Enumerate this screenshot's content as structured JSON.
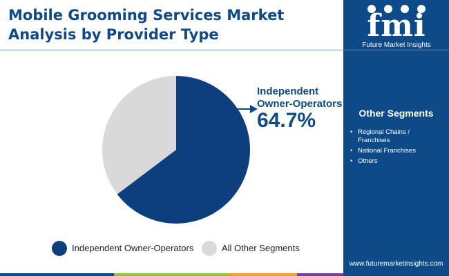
{
  "header": {
    "title": "Mobile Grooming Services Market Analysis by Provider Type"
  },
  "brand": {
    "logo_text": "fmi",
    "name": "Future Market Insights",
    "website": "www.futuremarketinsights.com"
  },
  "sidebar": {
    "segments_title": "Other Segments",
    "segments": [
      "Regional Chains / Franchises",
      "National Franchises",
      "Others"
    ]
  },
  "callout": {
    "label_line1": "Independent",
    "label_line2": "Owner-Operators",
    "value": "64.7%"
  },
  "chart_data": {
    "type": "pie",
    "title": "Mobile Grooming Services Market Analysis by Provider Type",
    "slices": [
      {
        "label": "Independent Owner-Operators",
        "value": 64.7,
        "color": "#0d3f7e"
      },
      {
        "label": "All Other Segments",
        "value": 35.3,
        "color": "#d9d9d9"
      }
    ],
    "legend_position": "bottom"
  },
  "colors": {
    "brand_blue": "#0d4a87",
    "bottom_bar": [
      "#0d4a87",
      "#8cc63f",
      "#f39c33",
      "#7a3e98",
      "#0d4a87"
    ]
  }
}
